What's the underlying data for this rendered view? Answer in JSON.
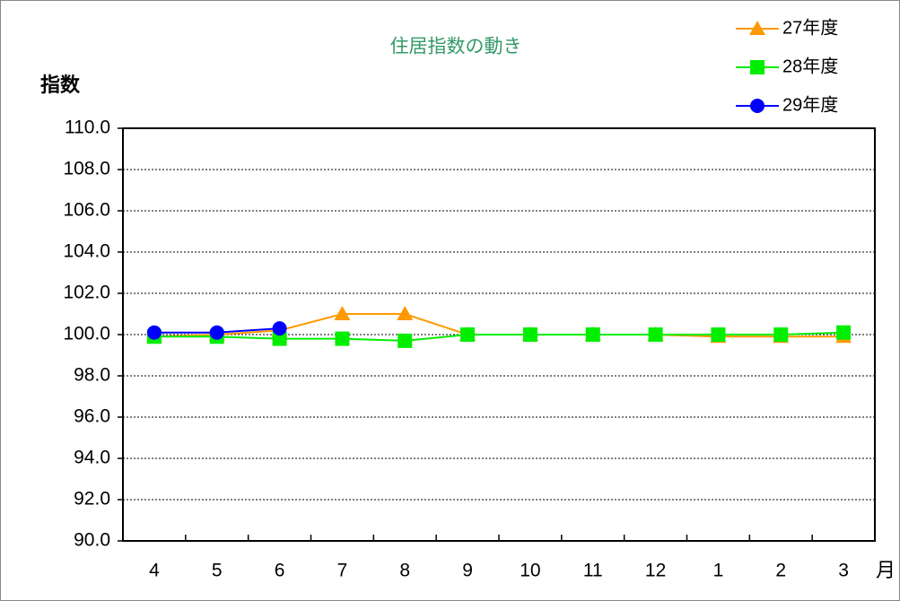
{
  "chart_data": {
    "type": "line",
    "title": "住居指数の動き",
    "y_label": "指数",
    "x_label": "月",
    "categories": [
      "4",
      "5",
      "6",
      "7",
      "8",
      "9",
      "10",
      "11",
      "12",
      "1",
      "2",
      "3"
    ],
    "series": [
      {
        "name": "27年度",
        "color": "#ff9900",
        "marker": "triangle",
        "values": [
          99.9,
          100.0,
          100.2,
          101.0,
          101.0,
          100.0,
          100.0,
          100.0,
          100.0,
          99.9,
          99.9,
          99.9
        ]
      },
      {
        "name": "28年度",
        "color": "#00ee00",
        "marker": "square",
        "values": [
          99.9,
          99.9,
          99.8,
          99.8,
          99.7,
          100.0,
          100.0,
          100.0,
          100.0,
          100.0,
          100.0,
          100.1
        ]
      },
      {
        "name": "29年度",
        "color": "#0000ff",
        "marker": "circle",
        "values": [
          100.1,
          100.1,
          100.3,
          null,
          null,
          null,
          null,
          null,
          null,
          null,
          null,
          null
        ]
      }
    ],
    "ylim": [
      90,
      110
    ],
    "yticks": [
      {
        "value": 90,
        "label": "90.0"
      },
      {
        "value": 92,
        "label": "92.0"
      },
      {
        "value": 94,
        "label": "94.0"
      },
      {
        "value": 96,
        "label": "96.0"
      },
      {
        "value": 98,
        "label": "98.0"
      },
      {
        "value": 100,
        "label": "100.0"
      },
      {
        "value": 102,
        "label": "102.0"
      },
      {
        "value": 104,
        "label": "104.0"
      },
      {
        "value": 106,
        "label": "106.0"
      },
      {
        "value": 108,
        "label": "108.0"
      },
      {
        "value": 110,
        "label": "110.0"
      }
    ],
    "grid": true,
    "legend": "top-right"
  }
}
